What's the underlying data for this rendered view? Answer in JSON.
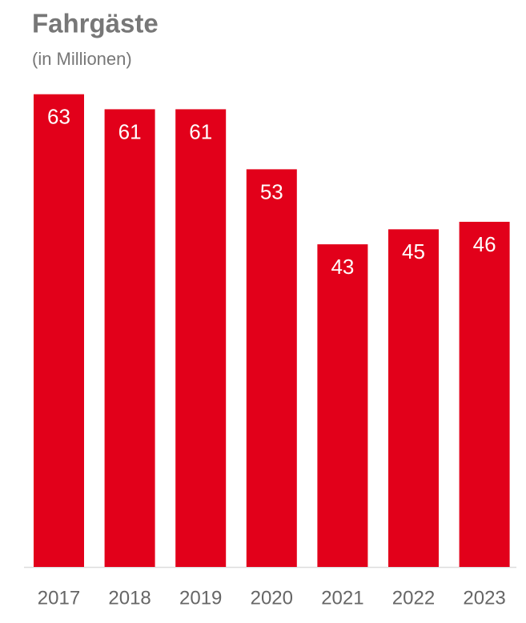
{
  "chart_data": {
    "type": "bar",
    "title": "Fahrgäste",
    "subtitle": "(in Millionen)",
    "categories": [
      "2017",
      "2018",
      "2019",
      "2020",
      "2021",
      "2022",
      "2023"
    ],
    "values": [
      63,
      61,
      61,
      53,
      43,
      45,
      46
    ],
    "color": "#e2001a"
  }
}
